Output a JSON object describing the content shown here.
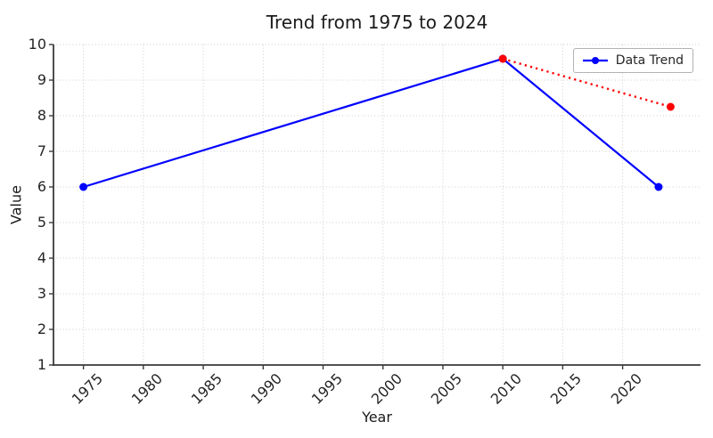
{
  "title": "Trend from 1975 to 2024",
  "xlabel": "Year",
  "ylabel": "Value",
  "legend": {
    "position": "upper right",
    "items": [
      {
        "label": "Data Trend",
        "color": "#0000ff",
        "marker": "circle",
        "line_style": "solid"
      }
    ]
  },
  "colors": {
    "background": "#ffffff",
    "spine": "#3a3a3a",
    "grid": "#cccccc",
    "text": "#262626",
    "blue_series": "#0000ff",
    "red_series": "#ff0000"
  },
  "chart_data": {
    "type": "line",
    "title": "Trend from 1975 to 2024",
    "xlabel": "Year",
    "ylabel": "Value",
    "xlim": [
      1972.5,
      2026.5
    ],
    "ylim": [
      1,
      10
    ],
    "x_ticks": [
      1975,
      1980,
      1985,
      1990,
      1995,
      2000,
      2005,
      2010,
      2015,
      2020
    ],
    "y_ticks": [
      1,
      2,
      3,
      4,
      5,
      6,
      7,
      8,
      9,
      10
    ],
    "grid": true,
    "grid_style": "dotted",
    "legend_position": "upper right",
    "series": [
      {
        "name": "Data Trend",
        "color": "#0000ff",
        "line_style": "solid",
        "marker": "circle",
        "in_legend": true,
        "x": [
          1975,
          2010,
          2023
        ],
        "y": [
          6.0,
          9.6,
          6.0
        ]
      },
      {
        "name": "",
        "color": "#ff0000",
        "line_style": "dotted",
        "marker": "circle",
        "in_legend": false,
        "x": [
          2010,
          2024
        ],
        "y": [
          9.6,
          8.25
        ]
      }
    ]
  }
}
